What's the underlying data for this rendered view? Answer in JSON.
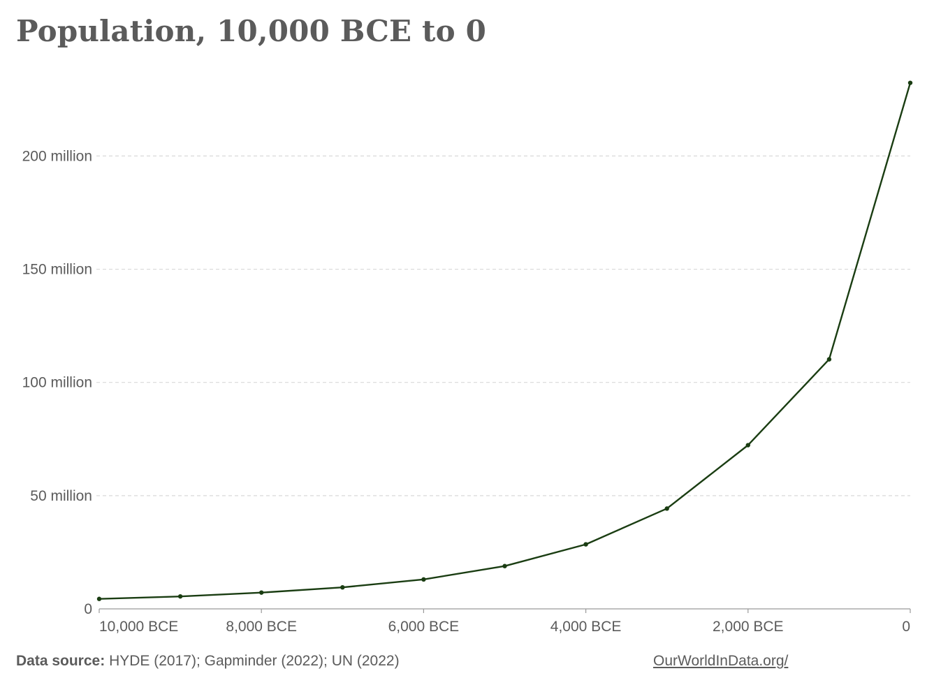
{
  "page": {
    "title": "Population, 10,000 BCE to 0",
    "footer_source_label": "Data source:",
    "footer_source_text": "HYDE (2017); Gapminder (2022); UN (2022)",
    "footer_link": "OurWorldInData.org/"
  },
  "colors": {
    "line": "#1a3d12",
    "grid": "#d9d9d9",
    "axis": "#999999",
    "text": "#5b5b5b"
  },
  "chart_data": {
    "type": "line",
    "title": "Population, 10,000 BCE to 0",
    "xlabel": "",
    "ylabel": "",
    "xlim": [
      -10000,
      0
    ],
    "ylim": [
      0,
      230000000
    ],
    "grid": "horizontal-dashed",
    "x": [
      -10000,
      -9000,
      -8000,
      -7000,
      -6000,
      -5000,
      -4000,
      -3000,
      -2000,
      -1000,
      0
    ],
    "series": [
      {
        "values": [
          4400000,
          5500000,
          7200000,
          9500000,
          13000000,
          18900000,
          28500000,
          44300000,
          72300000,
          110200000,
          232300000
        ]
      }
    ],
    "y_ticks": [
      {
        "value": 0,
        "label": "0"
      },
      {
        "value": 50000000,
        "label": "50 million"
      },
      {
        "value": 100000000,
        "label": "100 million"
      },
      {
        "value": 150000000,
        "label": "150 million"
      },
      {
        "value": 200000000,
        "label": "200 million"
      }
    ],
    "x_ticks": [
      {
        "value": -10000,
        "label": "10,000 BCE"
      },
      {
        "value": -8000,
        "label": "8,000 BCE"
      },
      {
        "value": -6000,
        "label": "6,000 BCE"
      },
      {
        "value": -4000,
        "label": "4,000 BCE"
      },
      {
        "value": -2000,
        "label": "2,000 BCE"
      },
      {
        "value": 0,
        "label": "0"
      }
    ]
  }
}
